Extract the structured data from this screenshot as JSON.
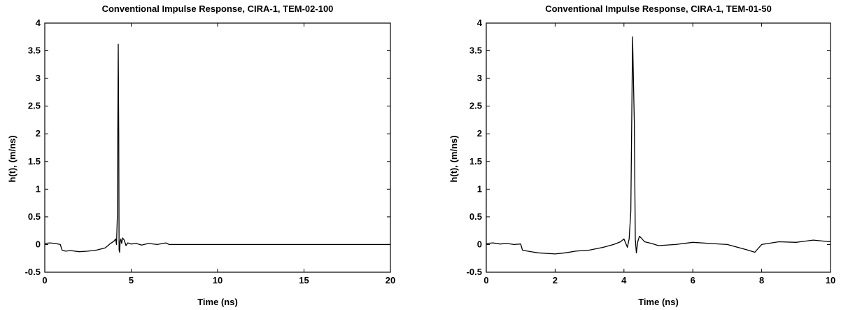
{
  "chart_data": [
    {
      "type": "line",
      "title": "Conventional Impulse Response, CIRA-1, TEM-02-100",
      "xlabel": "Time (ns)",
      "ylabel": "h(t), (m/ns)",
      "xlim": [
        0,
        20
      ],
      "ylim": [
        -0.5,
        4
      ],
      "xticks": [
        0,
        5,
        10,
        15,
        20
      ],
      "xtick_labels": [
        "0",
        "5",
        "10",
        "15",
        "20"
      ],
      "yticks": [
        -0.5,
        0,
        0.5,
        1,
        1.5,
        2,
        2.5,
        3,
        3.5,
        4
      ],
      "ytick_labels": [
        "-0.5",
        "0",
        "0.5",
        "1",
        "1.5",
        "2",
        "2.5",
        "3",
        "3.5",
        "4"
      ],
      "grid": false,
      "line_color": "#000000",
      "series": [
        {
          "x": [
            0,
            0.3,
            0.6,
            0.9,
            1.0,
            1.2,
            1.5,
            2.0,
            2.5,
            3.0,
            3.5,
            3.8,
            4.0,
            4.1,
            4.15,
            4.2,
            4.25,
            4.28,
            4.3,
            4.33,
            4.36,
            4.4,
            4.45,
            4.5,
            4.6,
            4.7,
            4.8,
            5.0,
            5.3,
            5.6,
            6.0,
            6.5,
            7.0,
            7.2,
            7.5,
            8,
            10,
            12,
            15,
            18,
            20
          ],
          "y": [
            0.02,
            0.03,
            0.02,
            0.0,
            -0.1,
            -0.12,
            -0.11,
            -0.13,
            -0.12,
            -0.1,
            -0.06,
            0.02,
            0.06,
            0.1,
            0.0,
            0.5,
            3.62,
            2.0,
            -0.1,
            -0.14,
            0.05,
            0.1,
            0.02,
            0.12,
            0.08,
            -0.02,
            0.03,
            0.01,
            0.02,
            -0.01,
            0.02,
            0.0,
            0.03,
            0.0,
            0.0,
            0.0,
            0.0,
            0.0,
            0.0,
            0.0,
            0.0
          ]
        }
      ]
    },
    {
      "type": "line",
      "title": "Conventional Impulse Response, CIRA-1, TEM-01-50",
      "xlabel": "Time (ns)",
      "ylabel": "h(t), (m/ns)",
      "xlim": [
        0,
        10
      ],
      "ylim": [
        -0.5,
        4
      ],
      "xticks": [
        0,
        2,
        4,
        6,
        8,
        10
      ],
      "xtick_labels": [
        "0",
        "2",
        "4",
        "6",
        "8",
        "10"
      ],
      "yticks": [
        -0.5,
        0,
        0.5,
        1,
        1.5,
        2,
        2.5,
        3,
        3.5,
        4
      ],
      "ytick_labels": [
        "-0.5",
        "0",
        "0.5",
        "1",
        "1.5",
        "2",
        "2.5",
        "3",
        "3.5",
        "4"
      ],
      "grid": false,
      "line_color": "#000000",
      "series": [
        {
          "x": [
            0,
            0.2,
            0.4,
            0.6,
            0.8,
            1.0,
            1.05,
            1.2,
            1.5,
            2.0,
            2.3,
            2.6,
            3.0,
            3.4,
            3.7,
            3.9,
            4.0,
            4.1,
            4.15,
            4.2,
            4.25,
            4.3,
            4.33,
            4.36,
            4.4,
            4.45,
            4.5,
            4.6,
            4.8,
            5.0,
            5.5,
            6.0,
            6.5,
            7.0,
            7.3,
            7.6,
            7.8,
            8.0,
            8.5,
            9.0,
            9.5,
            10.0
          ],
          "y": [
            0.02,
            0.03,
            0.01,
            0.02,
            0.0,
            0.01,
            -0.1,
            -0.12,
            -0.15,
            -0.17,
            -0.15,
            -0.12,
            -0.1,
            -0.05,
            0.0,
            0.05,
            0.1,
            -0.05,
            0.1,
            0.6,
            3.75,
            2.2,
            0.1,
            -0.15,
            0.05,
            0.15,
            0.12,
            0.05,
            0.02,
            -0.02,
            0.0,
            0.04,
            0.02,
            0.0,
            -0.05,
            -0.1,
            -0.14,
            0.0,
            0.05,
            0.04,
            0.08,
            0.05
          ]
        }
      ]
    }
  ]
}
